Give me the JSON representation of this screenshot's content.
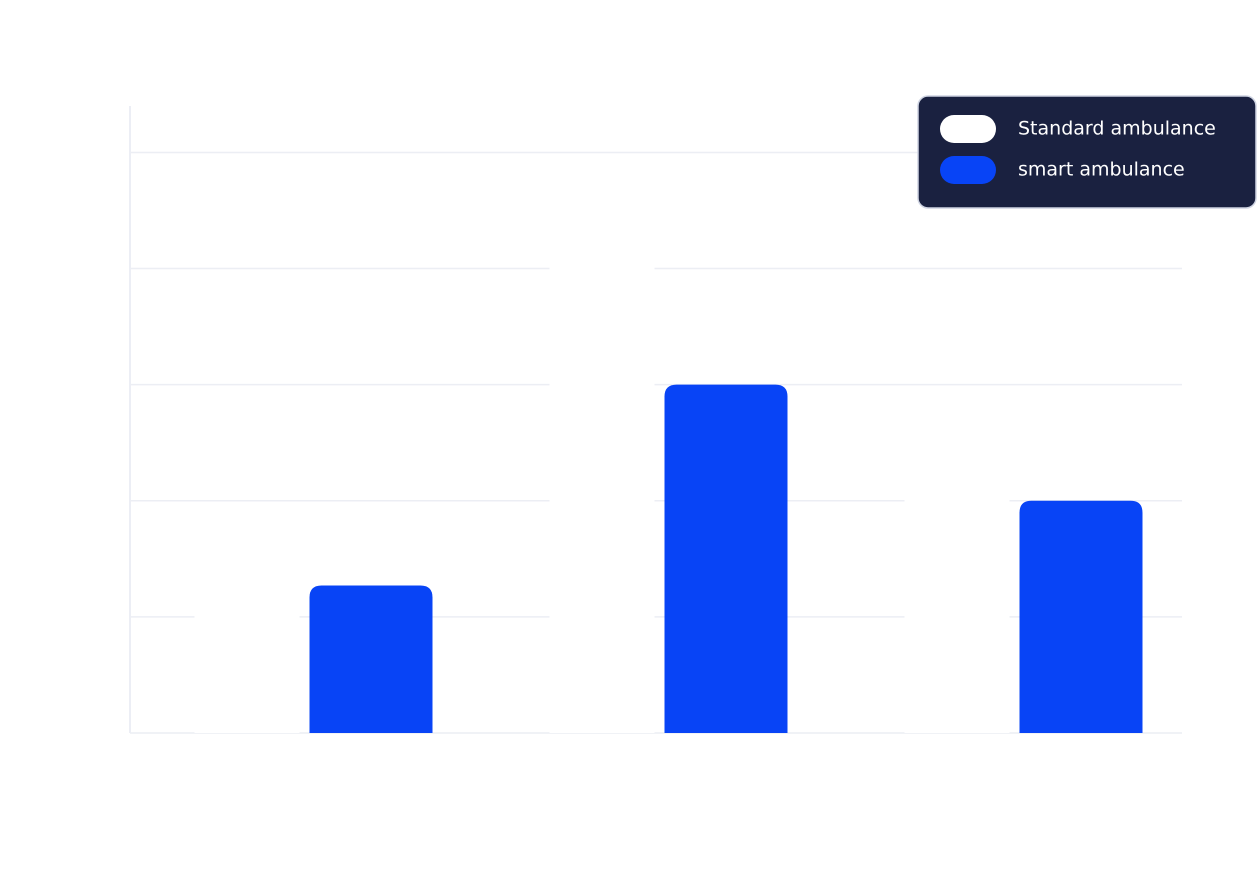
{
  "chart_data": {
    "type": "bar",
    "categories": [
      null,
      null,
      null
    ],
    "series": [
      {
        "name": "Standard ambulance",
        "color": "#ffffff",
        "values": [
          1.9,
          4.95,
          2.95
        ]
      },
      {
        "name": "smart ambulance",
        "color": "#0844f6",
        "values": [
          1.27,
          3.0,
          2.0
        ]
      }
    ],
    "ylim": [
      0,
      5.4
    ],
    "yticks": [
      0,
      1,
      2,
      3,
      4,
      5
    ],
    "grid": true,
    "legend": "top-right"
  }
}
